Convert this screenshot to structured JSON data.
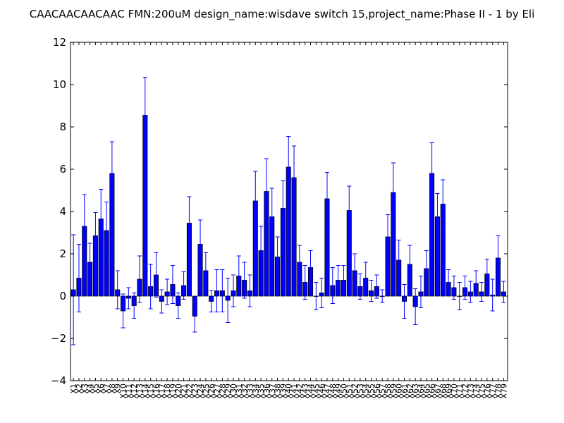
{
  "chart_data": {
    "type": "bar",
    "title": "CAACAACAACAAC  FMN:200uM  design_name:wisdave switch 15,project_name:Phase II - 1 by Eli",
    "xlabel": "",
    "ylabel": "",
    "ylim": [
      -4,
      12
    ],
    "yticks": [
      -4,
      -2,
      0,
      2,
      4,
      6,
      8,
      10,
      12
    ],
    "categories": [
      "X1",
      "X2",
      "X3",
      "X4",
      "X5",
      "X6",
      "X7",
      "X8",
      "X9",
      "X10",
      "X11",
      "X12",
      "X13",
      "X14",
      "X15",
      "X16",
      "X17",
      "X18",
      "X19",
      "X20",
      "X21",
      "X22",
      "X23",
      "X24",
      "X25",
      "X26",
      "X27",
      "X28",
      "X29",
      "X30",
      "X31",
      "X32",
      "X33",
      "X34",
      "X35",
      "X36",
      "X37",
      "X38",
      "X39",
      "X40",
      "X41",
      "X42",
      "X43",
      "X44",
      "X45",
      "X46",
      "X47",
      "X48",
      "X49",
      "X50",
      "X51",
      "X52",
      "X53",
      "X54",
      "X55",
      "X56",
      "X57",
      "X58",
      "X59",
      "X60",
      "X61",
      "X62",
      "X63",
      "X64",
      "X65",
      "X66",
      "X67",
      "X68",
      "X69",
      "X70",
      "X71",
      "X72",
      "X73",
      "X74",
      "X75",
      "X76",
      "X77",
      "X78",
      "X79"
    ],
    "values": [
      0.3,
      0.85,
      3.3,
      1.6,
      2.85,
      3.65,
      3.1,
      5.8,
      0.3,
      -0.7,
      -0.1,
      -0.45,
      0.8,
      8.55,
      0.45,
      1.0,
      -0.25,
      0.2,
      0.55,
      -0.45,
      0.5,
      3.45,
      -0.95,
      2.45,
      1.2,
      -0.25,
      0.25,
      0.25,
      -0.2,
      0.25,
      0.95,
      0.75,
      0.25,
      4.5,
      2.15,
      4.95,
      3.75,
      1.85,
      4.15,
      6.1,
      5.6,
      1.6,
      0.65,
      1.35,
      0.0,
      0.15,
      4.6,
      0.5,
      0.75,
      0.75,
      4.05,
      1.2,
      0.45,
      0.85,
      0.25,
      0.45,
      0.0,
      2.8,
      4.9,
      1.7,
      -0.25,
      1.5,
      -0.5,
      0.2,
      1.3,
      5.8,
      3.75,
      4.35,
      0.65,
      0.4,
      0.0,
      0.4,
      0.2,
      0.6,
      0.2,
      1.05,
      0.05,
      1.8,
      0.2
    ],
    "errors": [
      2.6,
      1.6,
      1.5,
      0.9,
      1.1,
      1.4,
      1.35,
      1.5,
      0.9,
      0.8,
      0.5,
      0.6,
      1.1,
      1.8,
      1.05,
      1.05,
      0.55,
      0.6,
      0.9,
      0.6,
      0.65,
      1.25,
      0.75,
      1.15,
      0.85,
      0.5,
      1.0,
      1.0,
      1.05,
      0.75,
      0.95,
      0.85,
      0.75,
      1.4,
      1.15,
      1.55,
      1.35,
      0.95,
      1.3,
      1.45,
      1.5,
      0.8,
      0.8,
      0.8,
      0.65,
      0.7,
      1.25,
      0.85,
      0.7,
      0.7,
      1.15,
      0.8,
      0.6,
      0.75,
      0.5,
      0.55,
      0.3,
      1.05,
      1.4,
      0.95,
      0.8,
      0.9,
      0.85,
      0.75,
      0.85,
      1.45,
      1.1,
      1.15,
      0.6,
      0.55,
      0.65,
      0.55,
      0.5,
      0.6,
      0.45,
      0.7,
      0.75,
      1.05,
      0.5
    ],
    "bar_color": "#0000ff",
    "error_color": "#0000ff",
    "grid": false
  }
}
